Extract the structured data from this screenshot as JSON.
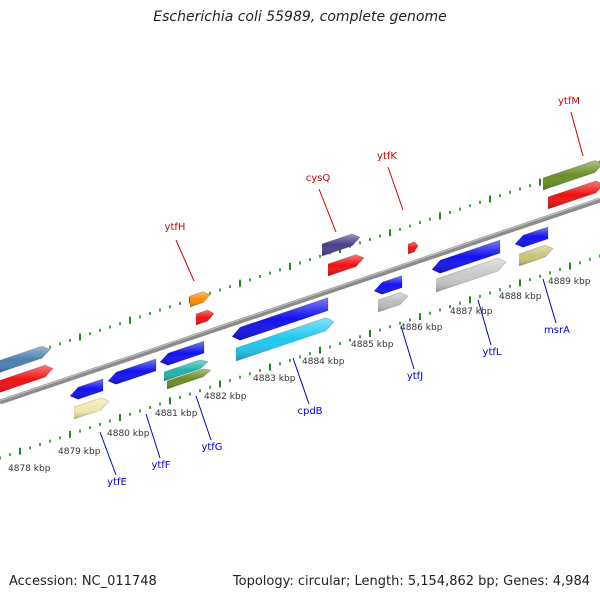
{
  "title": "Escherichia coli 55989, complete genome",
  "footer": {
    "accession": "Accession: NC_011748",
    "stats": "Topology: circular; Length: 5,154,862 bp; Genes: 4,984"
  },
  "colors": {
    "backbone": "#888888",
    "ticks": "#1f8a1f",
    "label_forward": "#cc0000",
    "label_reverse": "#0000cc"
  },
  "kbp_labels": [
    "4878 kbp",
    "4879 kbp",
    "4880 kbp",
    "4881 kbp",
    "4882 kbp",
    "4883 kbp",
    "4884 kbp",
    "4885 kbp",
    "4886 kbp",
    "4887 kbp",
    "4888 kbp",
    "4889 kbp"
  ],
  "forward_genes": [
    "ytfH",
    "cysQ",
    "ytfK",
    "ytfM"
  ],
  "reverse_genes": [
    "ytfE",
    "ytfF",
    "ytfG",
    "cpdB",
    "ytfJ",
    "ytfL",
    "msrA"
  ]
}
